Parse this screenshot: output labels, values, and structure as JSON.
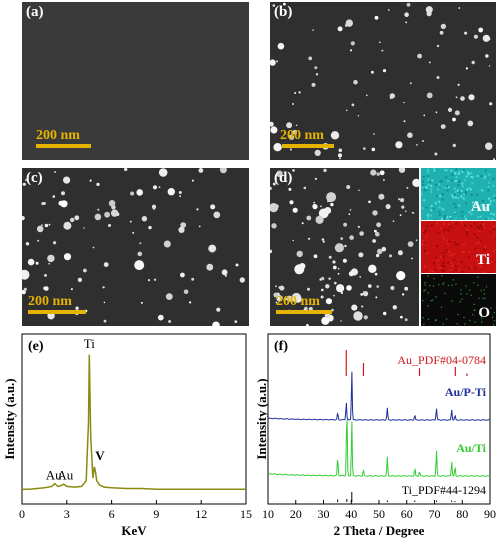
{
  "sem": {
    "a": {
      "label": "(a)",
      "scale": "200 nm"
    },
    "b": {
      "label": "(b)",
      "scale": "200 nm"
    },
    "c": {
      "label": "(c)",
      "scale": "200 nm"
    },
    "d": {
      "label": "(d)",
      "scale": "200 nm",
      "maps": [
        {
          "element": "Au",
          "color": "#1fb0b0"
        },
        {
          "element": "Ti",
          "color": "#c81010"
        },
        {
          "element": "O",
          "color": "#0a0a0a"
        }
      ]
    }
  },
  "chart_data": [
    {
      "type": "line",
      "panel_label": "(e)",
      "xlabel": "KeV",
      "ylabel": "Intensity (a.u.)",
      "xlim": [
        0,
        15
      ],
      "xticks": [
        "0",
        "3",
        "6",
        "9",
        "12",
        "15"
      ],
      "line_color": "#8a8a10",
      "series": [
        {
          "x": [
            0,
            0.5,
            1.0,
            1.5,
            2.0,
            2.2,
            2.3,
            2.4,
            2.6,
            2.8,
            3.0,
            3.5,
            4.0,
            4.3,
            4.45,
            4.51,
            4.6,
            4.75,
            4.85,
            4.93,
            5.0,
            5.2,
            5.5,
            6,
            7,
            8,
            9,
            10,
            11,
            12,
            13,
            14,
            15
          ],
          "y": [
            0.02,
            0.02,
            0.025,
            0.03,
            0.04,
            0.06,
            0.05,
            0.04,
            0.045,
            0.055,
            0.04,
            0.035,
            0.04,
            0.08,
            0.5,
            0.98,
            0.4,
            0.1,
            0.18,
            0.14,
            0.08,
            0.05,
            0.035,
            0.03,
            0.025,
            0.025,
            0.02,
            0.02,
            0.02,
            0.02,
            0.02,
            0.02,
            0.02
          ]
        }
      ],
      "annotations": [
        {
          "text": "Ti",
          "x": 4.51
        },
        {
          "text": "V",
          "x": 4.95
        },
        {
          "text": "Au",
          "x": 2.12
        },
        {
          "text": "Au",
          "x": 2.9
        }
      ]
    },
    {
      "type": "line",
      "panel_label": "(f)",
      "xlabel": "2 Theta / Degree",
      "ylabel": "Intensity (a.u.)",
      "xlim": [
        10,
        90
      ],
      "xticks": [
        "10",
        "20",
        "30",
        "40",
        "50",
        "60",
        "70",
        "80",
        "90"
      ],
      "series": [
        {
          "name": "Au/P-Ti",
          "color": "#1f2f9a",
          "peaks": [
            [
              35.1,
              0.12
            ],
            [
              38.2,
              0.3
            ],
            [
              40.2,
              0.85
            ],
            [
              53.0,
              0.2
            ],
            [
              62.9,
              0.08
            ],
            [
              70.7,
              0.2
            ],
            [
              76.2,
              0.18
            ],
            [
              77.4,
              0.08
            ]
          ]
        },
        {
          "name": "Au/Ti",
          "color": "#33cc33",
          "peaks": [
            [
              35.1,
              0.25
            ],
            [
              38.4,
              0.9
            ],
            [
              40.2,
              0.75
            ],
            [
              44.4,
              0.08
            ],
            [
              53.0,
              0.25
            ],
            [
              62.9,
              0.1
            ],
            [
              64.6,
              0.06
            ],
            [
              70.7,
              0.35
            ],
            [
              76.2,
              0.2
            ],
            [
              77.4,
              0.12
            ]
          ]
        }
      ],
      "references": [
        {
          "name": "Au_PDF#04-0784",
          "color": "#d01818",
          "peaks": [
            [
              38.2,
              1.0
            ],
            [
              44.4,
              0.5
            ],
            [
              64.6,
              0.3
            ],
            [
              77.5,
              0.35
            ],
            [
              81.7,
              0.1
            ]
          ]
        },
        {
          "name": "Ti_PDF#44-1294",
          "color": "#000000",
          "peaks": [
            [
              35.1,
              0.25
            ],
            [
              38.4,
              0.3
            ],
            [
              40.2,
              1.0
            ],
            [
              53.0,
              0.15
            ],
            [
              62.9,
              0.15
            ],
            [
              70.7,
              0.15
            ],
            [
              76.2,
              0.15
            ],
            [
              77.4,
              0.1
            ]
          ]
        }
      ]
    }
  ]
}
